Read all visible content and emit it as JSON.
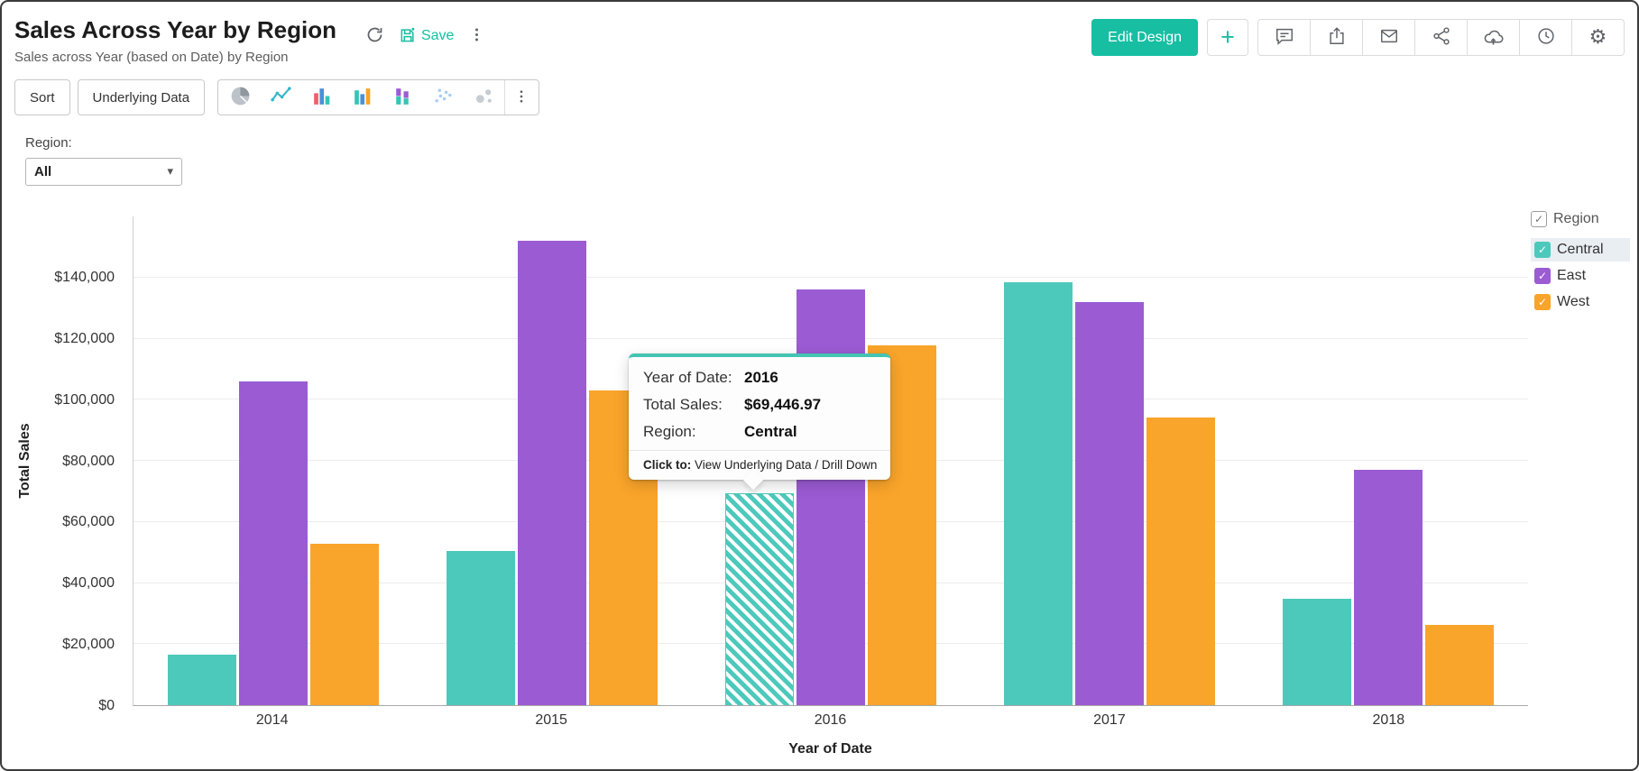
{
  "header": {
    "title": "Sales Across Year by Region",
    "subtitle": "Sales across Year (based on Date) by Region",
    "save_label": "Save",
    "edit_design_label": "Edit Design",
    "inline_icons": [
      "refresh-icon",
      "save-icon",
      "more-options-icon"
    ],
    "action_icons": [
      "comment-icon",
      "export-icon",
      "email-icon",
      "share-icon",
      "cloud-upload-icon",
      "history-icon",
      "settings-icon"
    ],
    "accent_color": "#17bea2"
  },
  "toolbar": {
    "sort_label": "Sort",
    "underlying_data_label": "Underlying Data",
    "chart_type_icons": [
      "pie-chart-icon",
      "line-chart-icon",
      "bar-chart-icon",
      "column-chart-icon",
      "stacked-chart-icon",
      "scatter-chart-icon",
      "bubble-chart-icon",
      "more-chart-types-icon"
    ]
  },
  "filter": {
    "label": "Region:",
    "value": "All"
  },
  "legend": {
    "title": "Region",
    "items": [
      {
        "label": "Central",
        "color": "#4dc9bc",
        "checked": true,
        "selected": true
      },
      {
        "label": "East",
        "color": "#9b5bd3",
        "checked": true,
        "selected": false
      },
      {
        "label": "West",
        "color": "#f9a42a",
        "checked": true,
        "selected": false
      }
    ]
  },
  "tooltip": {
    "rows": [
      {
        "label": "Year of Date:",
        "value": "2016"
      },
      {
        "label": "Total Sales:",
        "value": "$69,446.97"
      },
      {
        "label": "Region:",
        "value": "Central"
      }
    ],
    "footer_label": "Click to:",
    "footer_value": "View Underlying Data / Drill Down"
  },
  "chart_data": {
    "type": "bar",
    "title": "Sales Across Year by Region",
    "xlabel": "Year of Date",
    "ylabel": "Total Sales",
    "categories": [
      "2014",
      "2015",
      "2016",
      "2017",
      "2018"
    ],
    "series": [
      {
        "name": "Central",
        "color": "#4dc9bc",
        "values": [
          16400,
          50500,
          69446.97,
          138500,
          34800
        ]
      },
      {
        "name": "East",
        "color": "#9b5bd3",
        "values": [
          105900,
          152000,
          136000,
          132100,
          77200
        ]
      },
      {
        "name": "West",
        "color": "#f9a42a",
        "values": [
          52900,
          103000,
          117800,
          94200,
          26300
        ]
      }
    ],
    "ylim": [
      0,
      160000
    ],
    "yticks": [
      0,
      20000,
      40000,
      60000,
      80000,
      100000,
      120000,
      140000
    ],
    "ytick_labels": [
      "$0",
      "$20,000",
      "$40,000",
      "$60,000",
      "$80,000",
      "$100,000",
      "$120,000",
      "$140,000"
    ],
    "grid": true,
    "legend_position": "right",
    "highlighted": {
      "category": "2016",
      "series": "Central"
    }
  }
}
